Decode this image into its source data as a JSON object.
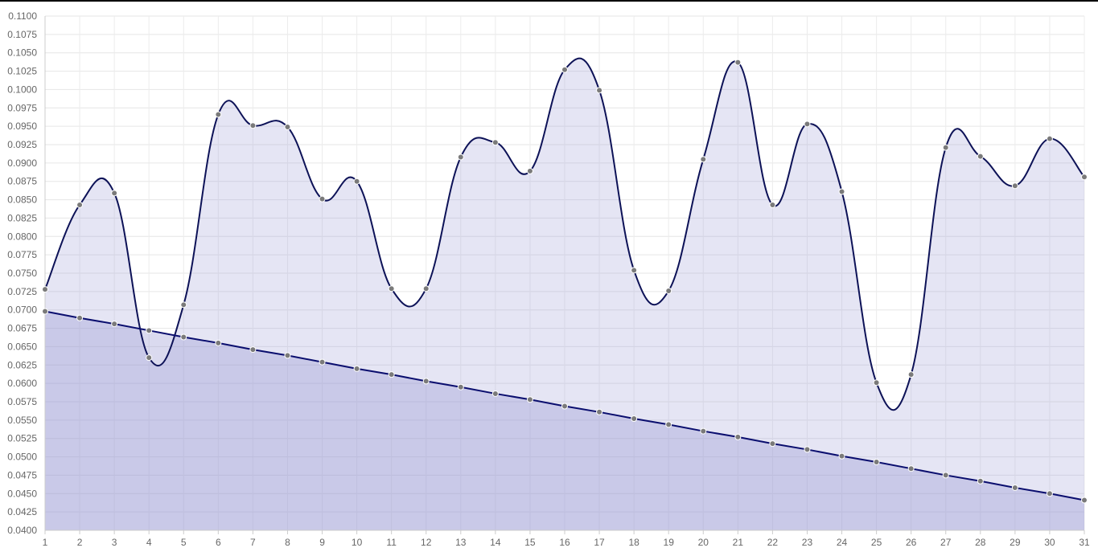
{
  "chart_data": {
    "type": "line",
    "title": "",
    "xlabel": "",
    "ylabel": "",
    "categories": [
      "1",
      "2",
      "3",
      "4",
      "5",
      "6",
      "7",
      "8",
      "9",
      "10",
      "11",
      "12",
      "13",
      "14",
      "15",
      "16",
      "17",
      "18",
      "19",
      "20",
      "21",
      "22",
      "23",
      "24",
      "25",
      "26",
      "27",
      "28",
      "29",
      "30",
      "31"
    ],
    "ylim": [
      0.04,
      0.11
    ],
    "y_ticks": [
      "0.0400",
      "0.0425",
      "0.0450",
      "0.0475",
      "0.0500",
      "0.0525",
      "0.0550",
      "0.0575",
      "0.0600",
      "0.0625",
      "0.0650",
      "0.0675",
      "0.0700",
      "0.0725",
      "0.0750",
      "0.0775",
      "0.0800",
      "0.0825",
      "0.0850",
      "0.0875",
      "0.0900",
      "0.0925",
      "0.0950",
      "0.0975",
      "0.1000",
      "0.1025",
      "0.1050",
      "0.1075",
      "0.1100"
    ],
    "grid": true,
    "legend": "none",
    "series": [
      {
        "values": [
          0.0728,
          0.0843,
          0.0859,
          0.0635,
          0.0707,
          0.0966,
          0.0951,
          0.0949,
          0.0851,
          0.0875,
          0.0729,
          0.0729,
          0.0908,
          0.0928,
          0.0889,
          0.1027,
          0.0999,
          0.0754,
          0.0726,
          0.0905,
          0.1037,
          0.0843,
          0.0953,
          0.0861,
          0.0601,
          0.0612,
          0.0921,
          0.0909,
          0.0869,
          0.0933,
          0.0881
        ],
        "line_color": "#0d1257",
        "fill_color": "rgba(150,150,210,0.25)",
        "point_color": "#7a7a7a",
        "smooth": true
      },
      {
        "values": [
          0.0698,
          0.0689,
          0.0681,
          0.0672,
          0.0663,
          0.0655,
          0.0646,
          0.0638,
          0.0629,
          0.062,
          0.0612,
          0.0603,
          0.0595,
          0.0586,
          0.0578,
          0.0569,
          0.0561,
          0.0552,
          0.0544,
          0.0535,
          0.0527,
          0.0518,
          0.051,
          0.0501,
          0.0493,
          0.0484,
          0.0475,
          0.0467,
          0.0458,
          0.045,
          0.0441
        ],
        "line_color": "#0a0e6e",
        "fill_color": "rgba(150,150,210,0.35)",
        "point_color": "#7a7a7a",
        "smooth": false
      }
    ]
  }
}
